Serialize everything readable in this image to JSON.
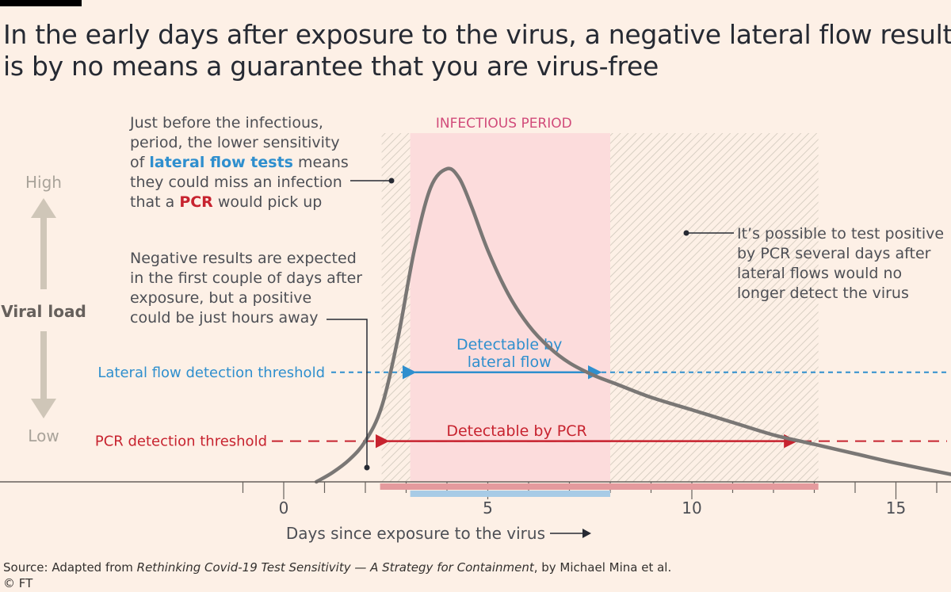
{
  "title": {
    "line1": "In the early days after exposure to the virus, a negative lateral flow result",
    "line2": "is by no means a guarantee that you are virus-free"
  },
  "chart_data": {
    "type": "line",
    "xlabel": "Days since exposure to the virus",
    "ylabel": "Viral load",
    "y_high_label": "High",
    "y_low_label": "Low",
    "xlim": [
      -2.6,
      16.5
    ],
    "ylim": [
      0,
      1
    ],
    "x_ticks": [
      0,
      5,
      10,
      15
    ],
    "x_tick_labels": [
      "0",
      "5",
      "10",
      "15"
    ],
    "x": [
      0.8,
      1.2,
      1.6,
      2.0,
      2.4,
      2.8,
      3.2,
      3.6,
      4.0,
      4.3,
      4.6,
      5.0,
      5.5,
      6.0,
      6.5,
      7.0,
      7.6,
      8.2,
      9.0,
      10.0,
      11.0,
      12.0,
      13.0,
      14.0,
      15.0,
      16.5
    ],
    "viral_load": [
      0.0,
      0.03,
      0.07,
      0.13,
      0.24,
      0.46,
      0.74,
      0.94,
      1.0,
      0.97,
      0.88,
      0.74,
      0.6,
      0.5,
      0.43,
      0.38,
      0.34,
      0.31,
      0.27,
      0.23,
      0.19,
      0.15,
      0.12,
      0.09,
      0.06,
      0.02
    ],
    "lateral_flow_threshold": 0.35,
    "pcr_threshold": 0.13,
    "lateral_flow_threshold_label": "Lateral flow detection threshold",
    "pcr_threshold_label": "PCR detection threshold",
    "infectious_period": [
      3.1,
      8.0
    ],
    "infectious_period_label": "INFECTIOUS PERIOD",
    "pre_infectious_hatch": [
      2.4,
      3.1
    ],
    "post_infectious_hatch": [
      8.0,
      13.1
    ],
    "lateral_flow_detectable": [
      3.1,
      7.8
    ],
    "lateral_flow_detectable_label": [
      "Detectable by",
      "lateral flow"
    ],
    "pcr_detectable": [
      2.4,
      12.6
    ],
    "pcr_detectable_label": "Detectable by PCR",
    "colors": {
      "curve": "#7a7775",
      "infectious": "#fcdcdc",
      "infectious_label": "#d14b7a",
      "lateral_flow": "#2f8fce",
      "pcr": "#c7232f",
      "pcr_bar": "#e49a9d",
      "lateral_bar": "#a8cbe6",
      "arrow_gray": "#cfc6b8"
    }
  },
  "annotations": {
    "a1": {
      "l1": "Just before the infectious,",
      "l2": "period, the lower sensitivity",
      "l3_pre": "of ",
      "l3_blue": "lateral flow tests",
      "l3_post": " means",
      "l4": "they could miss an infection",
      "l5_pre": "that a ",
      "l5_red": "PCR",
      "l5_post": " would pick up"
    },
    "a2": {
      "l1": "Negative results are expected",
      "l2": "in the first couple of days after",
      "l3": "exposure, but a positive",
      "l4": "could be just hours away"
    },
    "a3": {
      "l1": "It’s possible to test positive",
      "l2": "by PCR several days after",
      "l3": "lateral flows would no",
      "l4": "longer detect the virus"
    }
  },
  "footer": {
    "source_pre": "Source: Adapted from ",
    "source_title": "Rethinking Covid-19 Test Sensitivity — A Strategy for Containment",
    "source_post": ", by Michael Mina et al.",
    "copyright": "© FT"
  }
}
